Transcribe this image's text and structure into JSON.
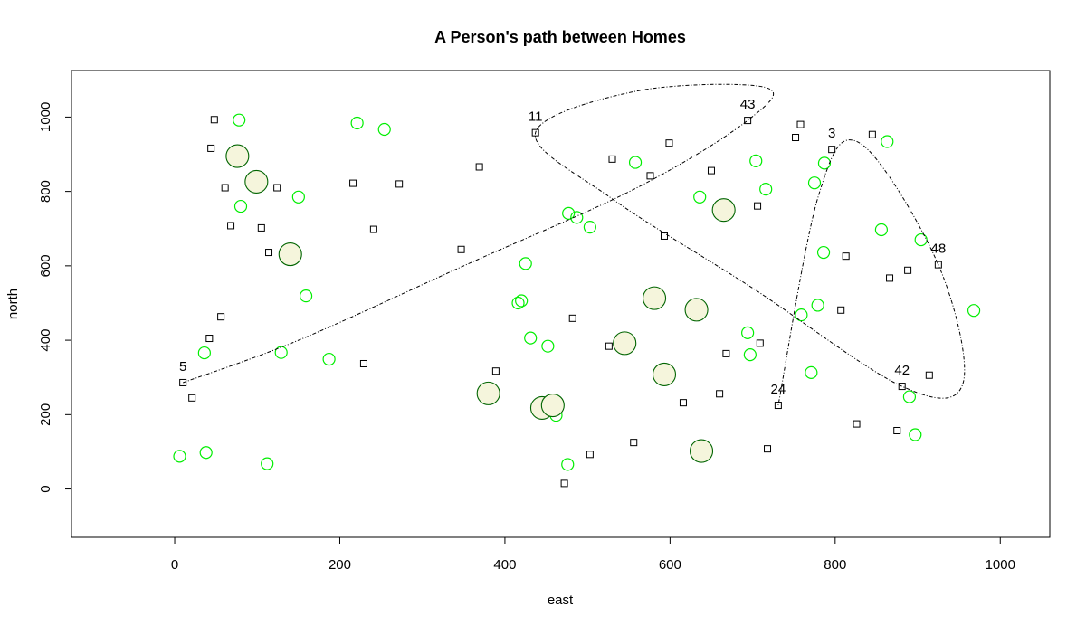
{
  "chart_data": {
    "type": "scatter",
    "title": "A Person's path between Homes",
    "xlabel": "east",
    "ylabel": "north",
    "xlim": [
      -125,
      1060
    ],
    "ylim": [
      -130,
      1125
    ],
    "x_ticks": [
      0,
      200,
      400,
      600,
      800,
      1000
    ],
    "y_ticks": [
      0,
      200,
      400,
      600,
      800,
      1000
    ],
    "colors": {
      "square_outline": "#000000",
      "small_circle": "#00ee00",
      "large_circle_edge": "#006400",
      "large_circle_fill": "#f5f5dc",
      "path": "#000000"
    },
    "homes": [
      {
        "x": 48,
        "y": 993
      },
      {
        "x": 44,
        "y": 916
      },
      {
        "x": 61,
        "y": 810
      },
      {
        "x": 68,
        "y": 708
      },
      {
        "x": 105,
        "y": 702
      },
      {
        "x": 114,
        "y": 636
      },
      {
        "x": 124,
        "y": 810
      },
      {
        "x": 56,
        "y": 463
      },
      {
        "x": 42,
        "y": 405
      },
      {
        "x": 21,
        "y": 245
      },
      {
        "x": 10,
        "y": 286
      },
      {
        "x": 216,
        "y": 822
      },
      {
        "x": 241,
        "y": 698
      },
      {
        "x": 272,
        "y": 820
      },
      {
        "x": 229,
        "y": 337
      },
      {
        "x": 347,
        "y": 644
      },
      {
        "x": 369,
        "y": 866
      },
      {
        "x": 389,
        "y": 317
      },
      {
        "x": 437,
        "y": 958
      },
      {
        "x": 482,
        "y": 459
      },
      {
        "x": 472,
        "y": 15
      },
      {
        "x": 503,
        "y": 93
      },
      {
        "x": 526,
        "y": 384
      },
      {
        "x": 530,
        "y": 887
      },
      {
        "x": 556,
        "y": 125
      },
      {
        "x": 576,
        "y": 842
      },
      {
        "x": 593,
        "y": 680
      },
      {
        "x": 599,
        "y": 930
      },
      {
        "x": 616,
        "y": 232
      },
      {
        "x": 650,
        "y": 856
      },
      {
        "x": 660,
        "y": 256
      },
      {
        "x": 668,
        "y": 364
      },
      {
        "x": 694,
        "y": 991
      },
      {
        "x": 706,
        "y": 761
      },
      {
        "x": 709,
        "y": 392
      },
      {
        "x": 718,
        "y": 108
      },
      {
        "x": 731,
        "y": 225
      },
      {
        "x": 752,
        "y": 945
      },
      {
        "x": 758,
        "y": 980
      },
      {
        "x": 796,
        "y": 913
      },
      {
        "x": 807,
        "y": 481
      },
      {
        "x": 813,
        "y": 626
      },
      {
        "x": 826,
        "y": 175
      },
      {
        "x": 845,
        "y": 953
      },
      {
        "x": 866,
        "y": 567
      },
      {
        "x": 875,
        "y": 157
      },
      {
        "x": 881,
        "y": 276
      },
      {
        "x": 888,
        "y": 588
      },
      {
        "x": 914,
        "y": 306
      },
      {
        "x": 925,
        "y": 603
      }
    ],
    "small_circles": [
      {
        "x": 78,
        "y": 992
      },
      {
        "x": 80,
        "y": 760
      },
      {
        "x": 150,
        "y": 785
      },
      {
        "x": 159,
        "y": 519
      },
      {
        "x": 129,
        "y": 367
      },
      {
        "x": 36,
        "y": 366
      },
      {
        "x": 38,
        "y": 98
      },
      {
        "x": 6,
        "y": 88
      },
      {
        "x": 112,
        "y": 68
      },
      {
        "x": 187,
        "y": 349
      },
      {
        "x": 221,
        "y": 984
      },
      {
        "x": 254,
        "y": 967
      },
      {
        "x": 425,
        "y": 606
      },
      {
        "x": 420,
        "y": 506
      },
      {
        "x": 416,
        "y": 500
      },
      {
        "x": 431,
        "y": 406
      },
      {
        "x": 452,
        "y": 384
      },
      {
        "x": 476,
        "y": 66
      },
      {
        "x": 462,
        "y": 198
      },
      {
        "x": 477,
        "y": 741
      },
      {
        "x": 487,
        "y": 730
      },
      {
        "x": 503,
        "y": 704
      },
      {
        "x": 558,
        "y": 878
      },
      {
        "x": 636,
        "y": 785
      },
      {
        "x": 704,
        "y": 882
      },
      {
        "x": 716,
        "y": 806
      },
      {
        "x": 694,
        "y": 420
      },
      {
        "x": 697,
        "y": 361
      },
      {
        "x": 759,
        "y": 468
      },
      {
        "x": 771,
        "y": 313
      },
      {
        "x": 775,
        "y": 823
      },
      {
        "x": 779,
        "y": 494
      },
      {
        "x": 786,
        "y": 636
      },
      {
        "x": 787,
        "y": 876
      },
      {
        "x": 856,
        "y": 697
      },
      {
        "x": 863,
        "y": 934
      },
      {
        "x": 890,
        "y": 248
      },
      {
        "x": 897,
        "y": 146
      },
      {
        "x": 904,
        "y": 670
      },
      {
        "x": 968,
        "y": 480
      }
    ],
    "large_circles": [
      {
        "x": 76,
        "y": 895
      },
      {
        "x": 99,
        "y": 826
      },
      {
        "x": 140,
        "y": 631
      },
      {
        "x": 380,
        "y": 257
      },
      {
        "x": 445,
        "y": 218
      },
      {
        "x": 458,
        "y": 225
      },
      {
        "x": 545,
        "y": 392
      },
      {
        "x": 581,
        "y": 513
      },
      {
        "x": 593,
        "y": 308
      },
      {
        "x": 632,
        "y": 482
      },
      {
        "x": 638,
        "y": 102
      },
      {
        "x": 665,
        "y": 750
      }
    ],
    "labeled_points": [
      {
        "label": "5",
        "x": 10,
        "y": 286
      },
      {
        "label": "11",
        "x": 437,
        "y": 958
      },
      {
        "label": "43",
        "x": 694,
        "y": 991
      },
      {
        "label": "3",
        "x": 796,
        "y": 913
      },
      {
        "label": "48",
        "x": 925,
        "y": 603
      },
      {
        "label": "42",
        "x": 881,
        "y": 276
      },
      {
        "label": "24",
        "x": 731,
        "y": 225
      }
    ],
    "path_knots": [
      {
        "x": 10,
        "y": 286
      },
      {
        "x": 150,
        "y": 400
      },
      {
        "x": 350,
        "y": 600
      },
      {
        "x": 560,
        "y": 810
      },
      {
        "x": 694,
        "y": 991
      },
      {
        "x": 715,
        "y": 1080
      },
      {
        "x": 560,
        "y": 1070
      },
      {
        "x": 437,
        "y": 958
      },
      {
        "x": 530,
        "y": 780
      },
      {
        "x": 700,
        "y": 540
      },
      {
        "x": 881,
        "y": 276
      },
      {
        "x": 955,
        "y": 285
      },
      {
        "x": 925,
        "y": 603
      },
      {
        "x": 830,
        "y": 930
      },
      {
        "x": 780,
        "y": 790
      },
      {
        "x": 731,
        "y": 225
      }
    ]
  }
}
